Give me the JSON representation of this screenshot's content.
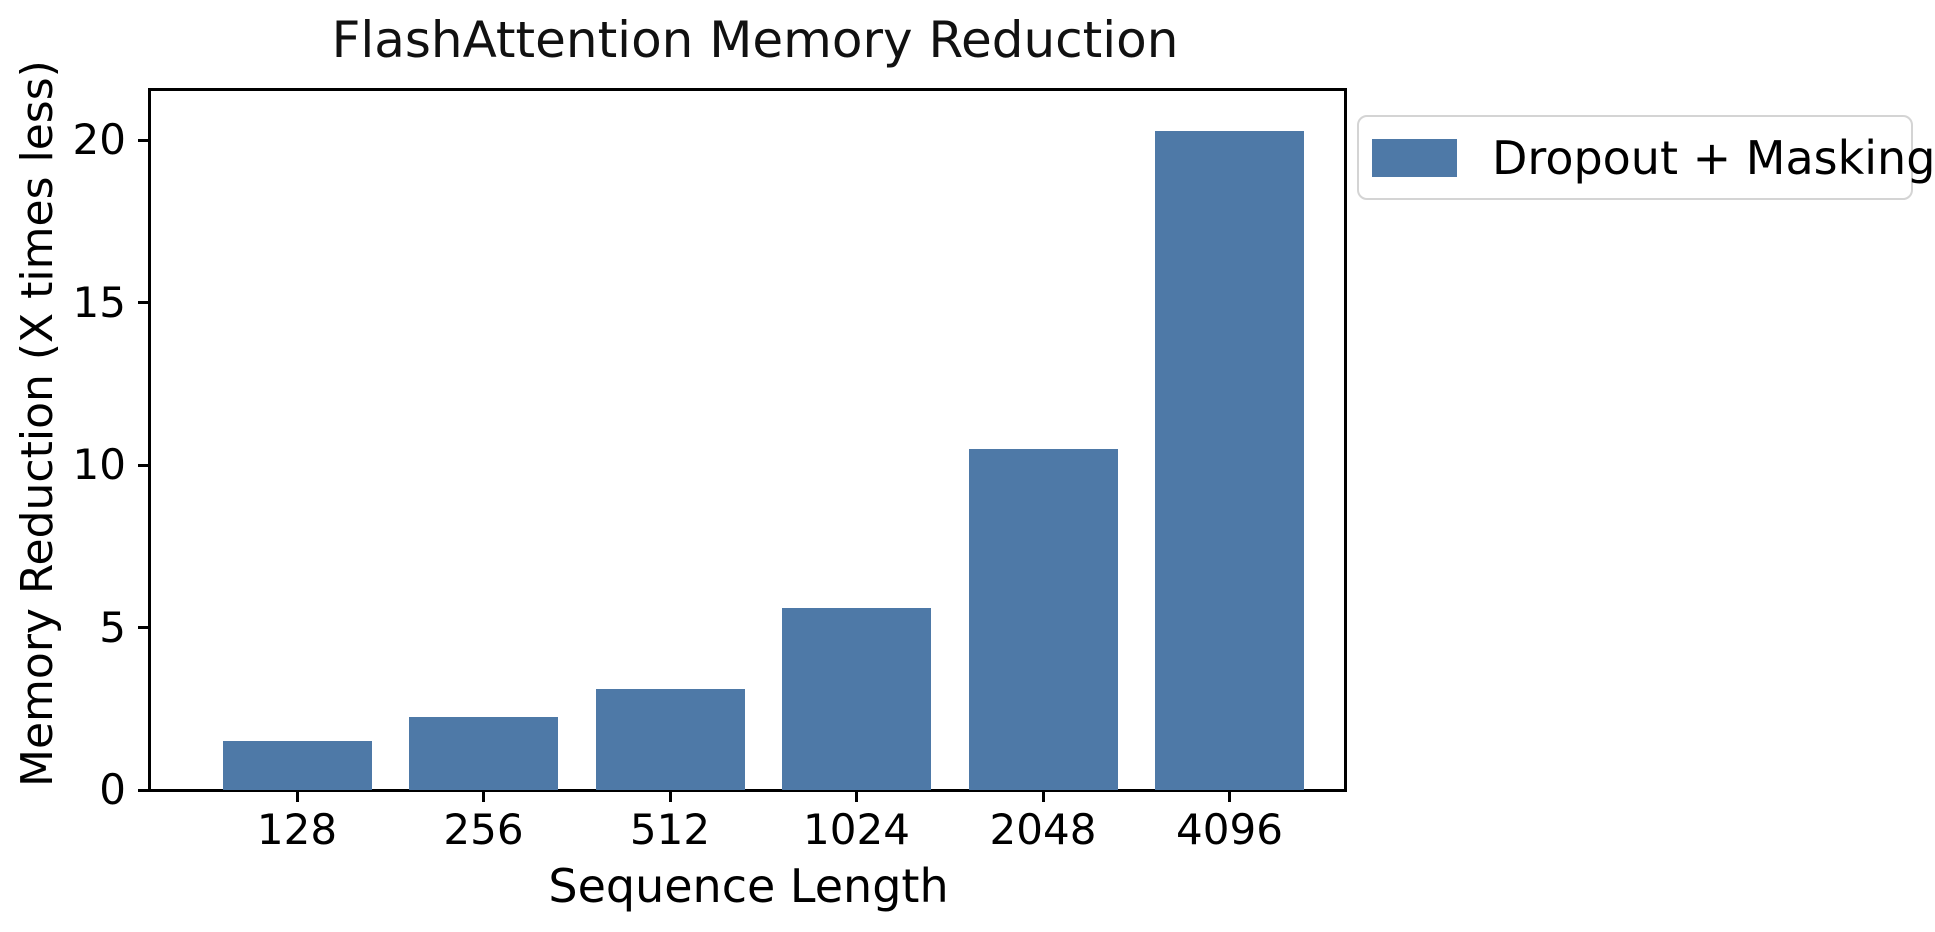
{
  "chart_data": {
    "type": "bar",
    "title": "FlashAttention Memory Reduction",
    "xlabel": "Sequence Length",
    "ylabel": "Memory Reduction (X times less)",
    "categories": [
      "128",
      "256",
      "512",
      "1024",
      "2048",
      "4096"
    ],
    "series": [
      {
        "name": "Dropout + Masking",
        "values": [
          1.5,
          2.25,
          3.1,
          5.6,
          10.5,
          20.3
        ]
      }
    ],
    "yticks": [
      0,
      5,
      10,
      15,
      20
    ],
    "ylim": [
      0,
      21.55
    ],
    "bar_color": "#4E79A7",
    "text_color": "#000000",
    "legend_position": "outside upper right",
    "grid": false
  }
}
